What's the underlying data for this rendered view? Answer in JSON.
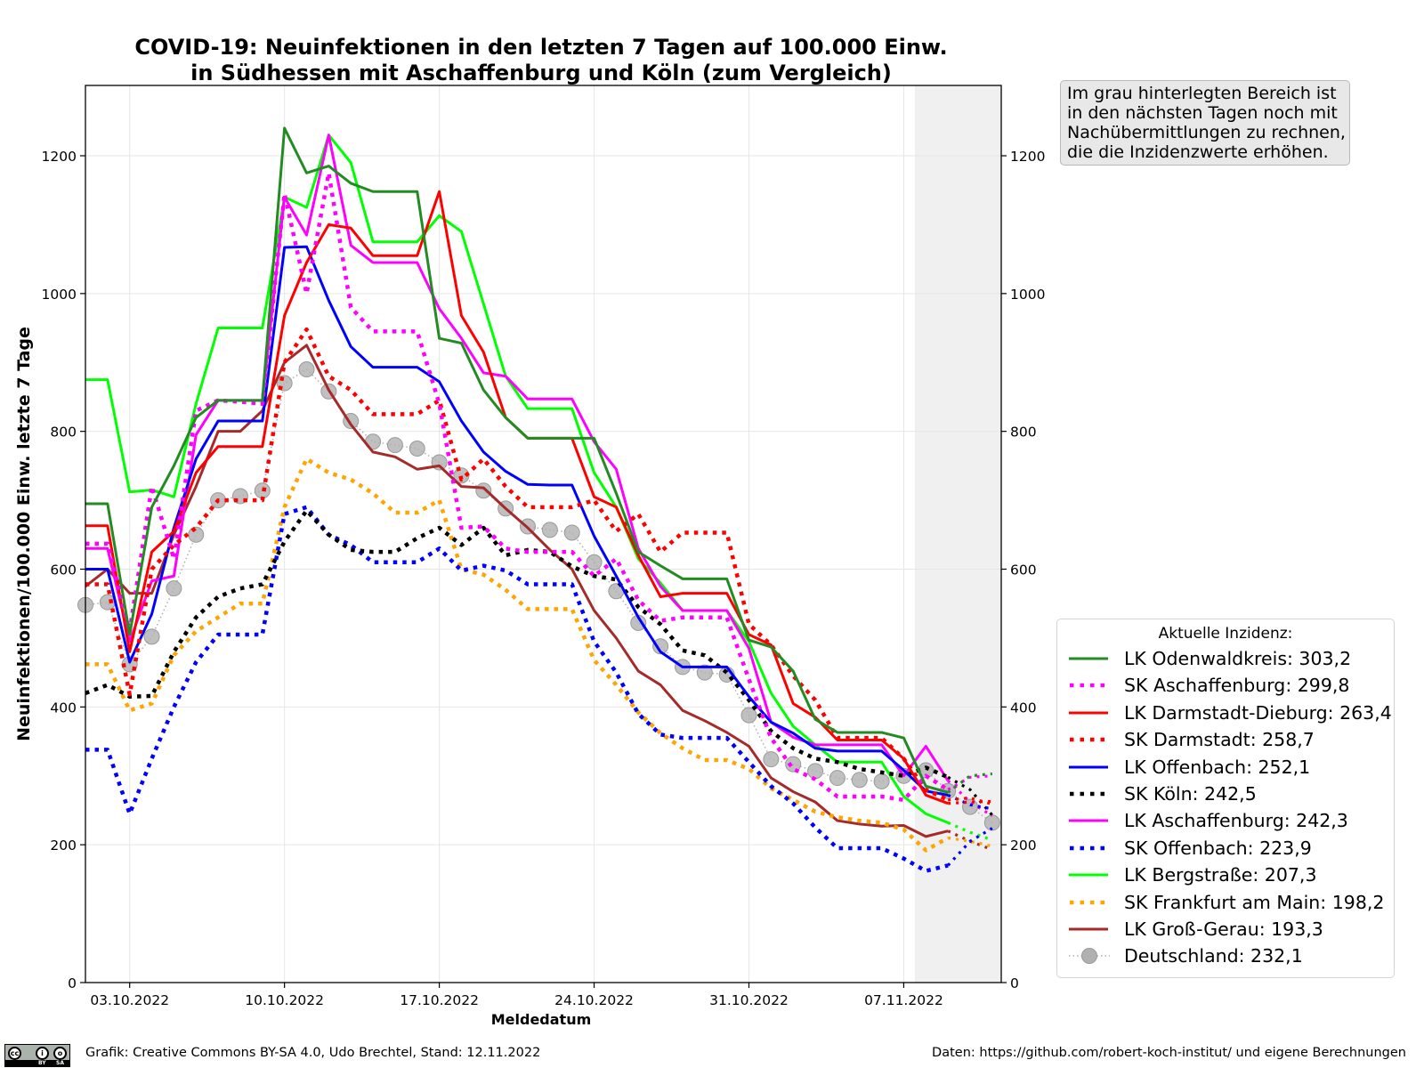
{
  "chart_data": {
    "type": "line",
    "title_line1": "COVID-19: Neuinfektionen in den letzten 7 Tagen auf 100.000 Einw.",
    "title_line2": "in Südhessen mit Aschaffenburg und Köln (zum Vergleich)",
    "xlabel": "Meldedatum",
    "ylabel": "Neuinfektionen/100.000 Einw. letzte 7 Tage",
    "ylim": [
      0,
      1300
    ],
    "x_start_date": "01.10.2022",
    "x_range_days": [
      0,
      41.5
    ],
    "grid": true,
    "shaded_region_days": [
      37.5,
      41.5
    ],
    "shaded_region_color": "#f0f0f0",
    "x_ticks": [
      {
        "day": 2,
        "label": "03.10.2022"
      },
      {
        "day": 9,
        "label": "10.10.2022"
      },
      {
        "day": 16,
        "label": "17.10.2022"
      },
      {
        "day": 23,
        "label": "24.10.2022"
      },
      {
        "day": 30,
        "label": "31.10.2022"
      },
      {
        "day": 37,
        "label": "07.11.2022"
      }
    ],
    "y_ticks": [
      {
        "value": 0,
        "label": "0"
      },
      {
        "value": 200,
        "label": "200"
      },
      {
        "value": 400,
        "label": "400"
      },
      {
        "value": 600,
        "label": "600"
      },
      {
        "value": 800,
        "label": "800"
      },
      {
        "value": 1000,
        "label": "1000"
      },
      {
        "value": 1200,
        "label": "1200"
      }
    ],
    "legend_title": "Aktuelle Inzidenz:",
    "legend_placement": "lower-right outside",
    "preliminary_from_day": 39,
    "series": [
      {
        "name": "LK Odenwaldkreis: 303,2",
        "color": "#228b22",
        "style": "solid",
        "values": [
          695,
          695,
          505,
          690,
          750,
          820,
          845,
          845,
          845,
          1240,
          1175,
          1185,
          1160,
          1148,
          1148,
          1148,
          935,
          928,
          860,
          820,
          790,
          790,
          790,
          790,
          710,
          625,
          605,
          586,
          586,
          586,
          497,
          487,
          452,
          382,
          363,
          363,
          363,
          355,
          285,
          276,
          300,
          303
        ]
      },
      {
        "name": "SK Aschaffenburg: 299,8",
        "color": "#ff00ff",
        "style": "dotted",
        "values": [
          637,
          637,
          510,
          720,
          615,
          830,
          845,
          843,
          840,
          1145,
          1000,
          1175,
          980,
          945,
          945,
          945,
          840,
          660,
          662,
          630,
          625,
          625,
          625,
          590,
          615,
          555,
          525,
          530,
          530,
          530,
          440,
          355,
          310,
          295,
          270,
          270,
          270,
          265,
          300,
          280,
          298,
          300
        ]
      },
      {
        "name": "LK Darmstadt-Dieburg: 263,4",
        "color": "#ff0000",
        "style": "solid",
        "values": [
          663,
          663,
          480,
          625,
          655,
          740,
          778,
          778,
          778,
          968,
          1045,
          1100,
          1095,
          1055,
          1055,
          1055,
          1148,
          968,
          915,
          820,
          790,
          790,
          790,
          705,
          690,
          620,
          560,
          565,
          565,
          565,
          505,
          490,
          405,
          385,
          352,
          352,
          352,
          325,
          272,
          260,
          262,
          263
        ]
      },
      {
        "name": "SK Darmstadt: 258,7",
        "color": "#ff0000",
        "style": "dotted",
        "values": [
          578,
          578,
          418,
          600,
          635,
          660,
          700,
          700,
          700,
          900,
          948,
          880,
          860,
          825,
          825,
          825,
          845,
          730,
          760,
          720,
          690,
          690,
          690,
          700,
          655,
          680,
          625,
          653,
          653,
          653,
          520,
          490,
          445,
          410,
          355,
          355,
          355,
          325,
          280,
          265,
          268,
          259
        ]
      },
      {
        "name": "LK Offenbach: 252,1",
        "color": "#0000ff",
        "style": "solid",
        "values": [
          600,
          600,
          465,
          535,
          660,
          760,
          815,
          815,
          815,
          1067,
          1068,
          990,
          923,
          893,
          893,
          893,
          872,
          815,
          770,
          742,
          723,
          722,
          722,
          648,
          590,
          530,
          480,
          458,
          458,
          458,
          415,
          378,
          362,
          340,
          336,
          336,
          336,
          308,
          278,
          272,
          258,
          252
        ]
      },
      {
        "name": "SK Köln: 242,5",
        "color": "#000000",
        "style": "dotted",
        "values": [
          420,
          432,
          415,
          416,
          480,
          530,
          560,
          572,
          578,
          640,
          685,
          650,
          628,
          625,
          625,
          645,
          660,
          635,
          660,
          620,
          628,
          625,
          604,
          590,
          585,
          545,
          520,
          482,
          475,
          450,
          410,
          365,
          340,
          325,
          320,
          310,
          305,
          300,
          312,
          298,
          280,
          243
        ]
      },
      {
        "name": "LK Aschaffenburg: 242,3",
        "color": "#ff00ff",
        "style": "solid",
        "values": [
          630,
          630,
          495,
          583,
          590,
          795,
          845,
          845,
          845,
          1140,
          1085,
          1230,
          1070,
          1045,
          1045,
          1045,
          978,
          935,
          885,
          880,
          847,
          847,
          847,
          785,
          745,
          630,
          575,
          540,
          540,
          540,
          485,
          378,
          356,
          345,
          345,
          345,
          345,
          300,
          343,
          293,
          262,
          242
        ]
      },
      {
        "name": "SK Offenbach: 223,9",
        "color": "#0000ff",
        "style": "dotted",
        "values": [
          338,
          338,
          245,
          325,
          400,
          465,
          505,
          505,
          505,
          680,
          690,
          650,
          635,
          610,
          610,
          610,
          630,
          598,
          605,
          598,
          578,
          578,
          578,
          495,
          450,
          390,
          360,
          355,
          355,
          355,
          320,
          285,
          260,
          225,
          195,
          195,
          195,
          180,
          162,
          170,
          205,
          224
        ]
      },
      {
        "name": "LK Bergstraße: 207,3",
        "color": "#00ff00",
        "style": "solid",
        "values": [
          875,
          875,
          712,
          715,
          705,
          840,
          950,
          950,
          950,
          1140,
          1125,
          1230,
          1190,
          1075,
          1075,
          1075,
          1113,
          1090,
          985,
          880,
          833,
          833,
          833,
          740,
          690,
          615,
          580,
          540,
          540,
          540,
          495,
          420,
          372,
          345,
          320,
          320,
          320,
          270,
          245,
          232,
          218,
          207
        ]
      },
      {
        "name": "SK Frankfurt am Main: 198,2",
        "color": "#ffa500",
        "style": "dotted",
        "values": [
          462,
          462,
          395,
          405,
          475,
          510,
          530,
          550,
          550,
          690,
          760,
          740,
          730,
          710,
          682,
          682,
          700,
          600,
          592,
          570,
          542,
          542,
          542,
          468,
          432,
          392,
          362,
          340,
          323,
          323,
          310,
          282,
          265,
          248,
          240,
          235,
          232,
          222,
          192,
          210,
          205,
          198
        ]
      },
      {
        "name": "LK Groß-Gerau: 193,3",
        "color": "#a52a2a",
        "style": "solid",
        "values": [
          575,
          600,
          565,
          565,
          650,
          720,
          800,
          800,
          830,
          900,
          925,
          860,
          810,
          770,
          763,
          745,
          750,
          720,
          718,
          688,
          660,
          628,
          600,
          540,
          500,
          452,
          432,
          395,
          380,
          363,
          343,
          297,
          277,
          262,
          235,
          230,
          227,
          228,
          212,
          220,
          205,
          193
        ]
      },
      {
        "name": "Deutschland: 232,1",
        "color": "#b0b0b0",
        "style": "dotted-circle",
        "values": [
          548,
          552,
          462,
          502,
          572,
          650,
          700,
          706,
          714,
          870,
          890,
          858,
          815,
          785,
          780,
          775,
          755,
          736,
          714,
          688,
          662,
          657,
          653,
          610,
          568,
          522,
          488,
          458,
          450,
          447,
          388,
          324,
          317,
          307,
          297,
          294,
          292,
          300,
          308,
          278,
          255,
          232
        ]
      }
    ]
  },
  "note": {
    "lines": [
      "Im grau hinterlegten Bereich ist",
      "in den nächsten Tagen noch mit",
      "Nachübermittlungen zu rechnen,",
      "die die Inzidenzwerte erhöhen."
    ]
  },
  "footer": {
    "license_badge": "CC BY SA",
    "left": "Grafik: Creative Commons BY-SA 4.0, Udo Brechtel, Stand: 12.11.2022",
    "right": "Daten: https://github.com/robert-koch-institut/ und eigene Berechnungen"
  }
}
